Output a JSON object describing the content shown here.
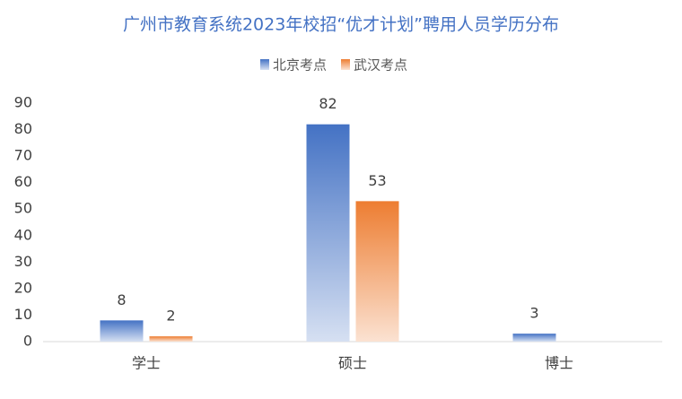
{
  "chart_data": {
    "type": "bar",
    "title": "广州市教育系统2023年校招“优才计划”聘用人员学历分布",
    "categories": [
      "学士",
      "硕士",
      "博士"
    ],
    "series": [
      {
        "name": "北京考点",
        "color": "#4472c4",
        "values": [
          8,
          82,
          3
        ]
      },
      {
        "name": "武汉考点",
        "color": "#ed7d31",
        "values": [
          2,
          53,
          null
        ]
      }
    ],
    "ylim": [
      0,
      90
    ],
    "yticks": [
      0,
      10,
      20,
      30,
      40,
      50,
      60,
      70,
      80,
      90
    ],
    "grid": false
  }
}
